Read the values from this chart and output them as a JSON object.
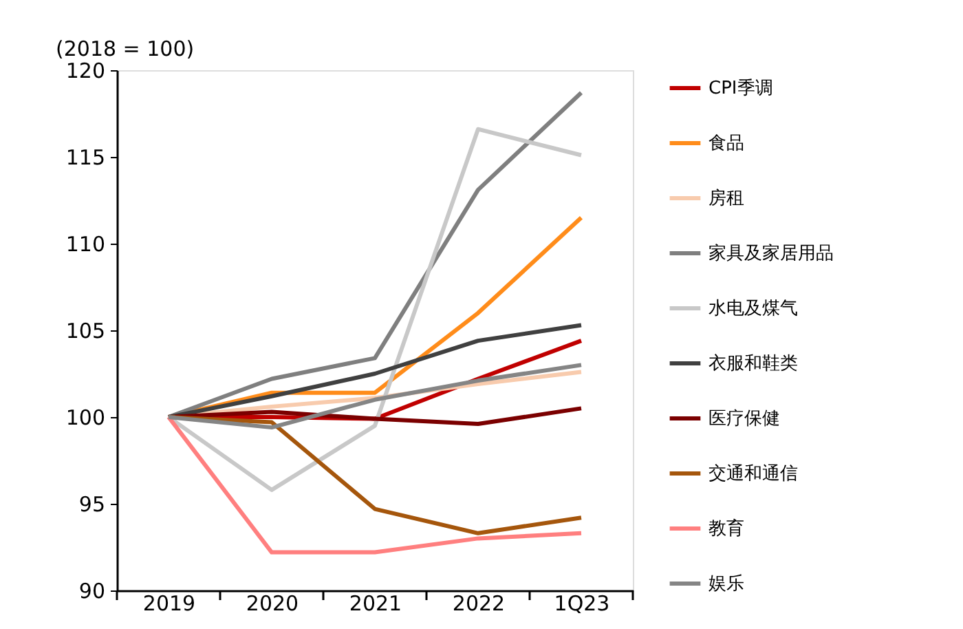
{
  "chart_data": {
    "type": "line",
    "ylabel": "(2018 = 100)",
    "categories": [
      "2019",
      "2020",
      "2021",
      "2022",
      "1Q23"
    ],
    "ylim": [
      90,
      120
    ],
    "yticks": [
      90,
      95,
      100,
      105,
      110,
      115,
      120
    ],
    "grid": false,
    "legend": "right",
    "marker": "none",
    "line_style": "solid",
    "series": [
      {
        "name": "CPI季调",
        "color": "#c00000",
        "values": [
          100,
          100.0,
          99.9,
          102.2,
          104.4
        ]
      },
      {
        "name": "食品",
        "color": "#ff8c1a",
        "values": [
          100,
          101.4,
          101.4,
          106.0,
          111.5
        ]
      },
      {
        "name": "房租",
        "color": "#f8cbad",
        "values": [
          100,
          100.6,
          101.1,
          101.9,
          102.6
        ]
      },
      {
        "name": "家具及家居用品",
        "color": "#7f7f7f",
        "values": [
          100,
          102.2,
          103.4,
          113.1,
          118.7
        ]
      },
      {
        "name": "水电及煤气",
        "color": "#c8c8c8",
        "values": [
          100,
          95.8,
          99.5,
          116.6,
          115.1
        ]
      },
      {
        "name": "衣服和鞋类",
        "color": "#404040",
        "values": [
          100,
          101.2,
          102.5,
          104.4,
          105.3
        ]
      },
      {
        "name": "医疗保健",
        "color": "#7b0000",
        "values": [
          100,
          100.3,
          99.9,
          99.6,
          100.5
        ]
      },
      {
        "name": "交通和通信",
        "color": "#a5560c",
        "values": [
          100,
          99.7,
          94.7,
          93.3,
          94.2
        ]
      },
      {
        "name": "教育",
        "color": "#ff7f7f",
        "values": [
          100,
          92.2,
          92.2,
          93.0,
          93.3
        ]
      },
      {
        "name": "娱乐",
        "color": "#858585",
        "values": [
          100,
          99.4,
          101.0,
          102.1,
          103.0
        ]
      }
    ]
  }
}
